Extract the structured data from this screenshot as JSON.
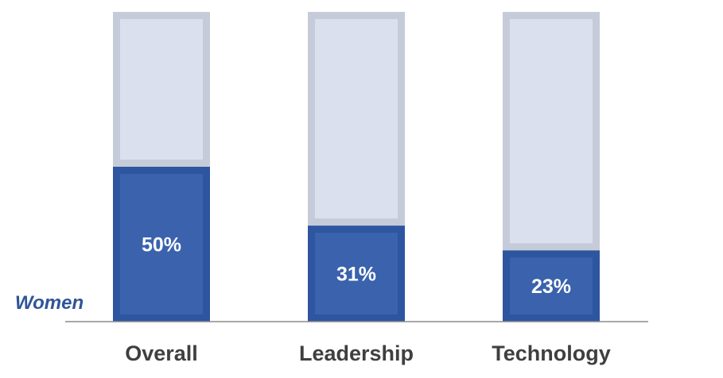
{
  "chart_data": {
    "type": "bar",
    "stacked": true,
    "categories": [
      "Overall",
      "Leadership",
      "Technology"
    ],
    "series": [
      {
        "name": "Women",
        "values": [
          50,
          31,
          23
        ],
        "data_labels": [
          "50%",
          "31%",
          "23%"
        ],
        "color": "#3a62ad",
        "border_color": "#2e55a0"
      },
      {
        "values": [
          50,
          69,
          77
        ],
        "color": "#dae0ee",
        "border_color": "#c5cbd9"
      }
    ],
    "ylim": [
      0,
      100
    ],
    "grid": false,
    "legend": "none",
    "series_label_position": "left"
  }
}
